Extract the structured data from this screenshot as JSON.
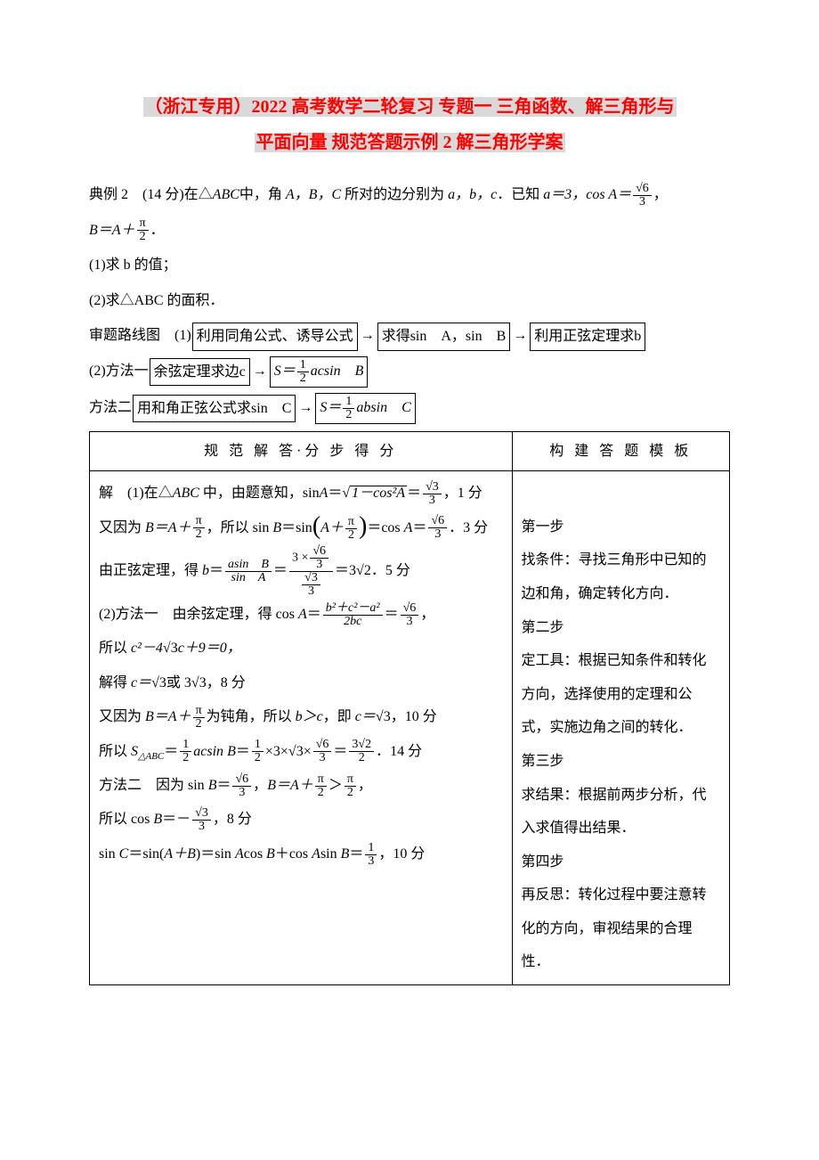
{
  "title_line1": "（浙江专用）2022 高考数学二轮复习 专题一 三角函数、解三角形与",
  "title_line2": "平面向量 规范答题示例 2 解三角形学案",
  "problem": {
    "prefix": "典例 2　(14 分)在△",
    "triangle": "ABC",
    "mid1": "中，角 ",
    "angles": "A，B，C",
    "mid2": " 所对的边分别为 ",
    "sides": "a，b，c",
    "mid3": "．已知 ",
    "a_eq": "a＝3，cos A＝",
    "cosA_num": "√6",
    "cosA_den": "3",
    "comma": "，",
    "B_eq_l": "B＝A＋",
    "pi_num": "π",
    "pi_den": "2",
    "end": "．"
  },
  "q1": "(1)求 b 的值；",
  "q2": "(2)求△ABC 的面积．",
  "route_label": "审题路线图",
  "route1_prefix": "(1)",
  "route1_box1": "利用同角公式、诱导公式",
  "route1_box2": "求得sin　A，sin　B",
  "route1_box3": "利用正弦定理求b",
  "route2_prefix": "(2)方法一",
  "route2_box1": "余弦定理求边c",
  "route2_box2_l": "S＝",
  "route2_box2_num": "1",
  "route2_box2_den": "2",
  "route2_box2_r": "acsin　B",
  "route3_prefix": "方法二",
  "route3_box1": "用和角正弦公式求sin　C",
  "route3_box2_l": "S＝",
  "route3_box2_num": "1",
  "route3_box2_den": "2",
  "route3_box2_r": "absin　C",
  "table": {
    "header_left": "规 范 解 答·分 步 得 分",
    "header_right": "构 建 答 题 模 板",
    "left": {
      "l1a": "解　(1)在△",
      "l1b": "ABC",
      "l1c": " 中，由题意知，sin",
      "l1d": "A",
      "l1e": "＝",
      "l1_root": "1－cos²A",
      "l1_eq": "＝",
      "l1_num": "√3",
      "l1_den": "3",
      "l1_score": "，1 分",
      "l2a": "又因为 ",
      "l2b": "B＝A＋",
      "l2_pi_num": "π",
      "l2_pi_den": "2",
      "l2c": "，所以 sin ",
      "l2d": "B",
      "l2e": "＝sin",
      "l2_paren_l": "A＋",
      "l2_pn": "π",
      "l2_pd": "2",
      "l2f": "＝cos ",
      "l2g": "A",
      "l2h": "＝",
      "l2_rn": "√6",
      "l2_rd": "3",
      "l2_score": "．3 分",
      "l3a": "由正弦定理，得 ",
      "l3b": "b",
      "l3c": "＝",
      "l3_f1n": "asin　B",
      "l3_f1d": "sin　A",
      "l3_eq1": "＝",
      "l3_f2n_top_l": "3 ×",
      "l3_f2n_top_n": "√6",
      "l3_f2n_top_d": "3",
      "l3_f2d_n": "√3",
      "l3_f2d_d": "3",
      "l3_eq2": "＝3",
      "l3_root2": "√2",
      "l3_score": "．5 分",
      "l4a": "(2)方法一　由余弦定理，得 cos ",
      "l4b": "A",
      "l4c": "＝",
      "l4_fn": "b²＋c²－a²",
      "l4_fd": "2bc",
      "l4d": "＝",
      "l4_rn": "√6",
      "l4_rd": "3",
      "l4e": "，",
      "l5a": "所以 ",
      "l5b": "c²－4",
      "l5_r3": "√3",
      "l5c": "c＋9＝0，",
      "l6a": "解得 ",
      "l6b": "c＝",
      "l6_r3a": "√3",
      "l6c": "或 3",
      "l6_r3b": "√3",
      "l6_score": "，8 分",
      "l7a": "又因为 ",
      "l7b": "B＝A＋",
      "l7_pn": "π",
      "l7_pd": "2",
      "l7c": "为钝角，所以 ",
      "l7d": "b＞c",
      "l7e": "，即 ",
      "l7f": "c＝",
      "l7_r3": "√3",
      "l7_score": "，10 分",
      "l8a": "所以 ",
      "l8b": "S",
      "l8_sub": "△ABC",
      "l8c": "＝",
      "l8_hn": "1",
      "l8_hd": "2",
      "l8d": "acsin ",
      "l8e": "B",
      "l8f": "＝",
      "l8_hn2": "1",
      "l8_hd2": "2",
      "l8g": "×3×",
      "l8_r3": "√3",
      "l8h": "×",
      "l8_rn": "√6",
      "l8_rd": "3",
      "l8i": "＝",
      "l8_fn": "3√2",
      "l8_fd": "2",
      "l8_score": "．14 分",
      "l9a": "方法二　因为 sin ",
      "l9b": "B",
      "l9c": "＝",
      "l9_rn": "√6",
      "l9_rd": "3",
      "l9d": "，",
      "l9e": "B＝A＋",
      "l9_pn": "π",
      "l9_pd": "2",
      "l9f": "＞",
      "l9_pn2": "π",
      "l9_pd2": "2",
      "l9g": "，",
      "l10a": "所以 cos ",
      "l10b": "B",
      "l10c": "＝－",
      "l10_rn": "√3",
      "l10_rd": "3",
      "l10_score": "，8 分",
      "l11a": "sin ",
      "l11b": "C",
      "l11c": "＝sin(",
      "l11d": "A＋B",
      "l11e": ")＝sin ",
      "l11f": "A",
      "l11g": "cos ",
      "l11h": "B",
      "l11i": "＋cos ",
      "l11j": "A",
      "l11k": "sin ",
      "l11l": "B",
      "l11m": "＝",
      "l11_fn": "1",
      "l11_fd": "3",
      "l11_score": "，10 分"
    },
    "right": {
      "s1t": "第一步",
      "s1b": "找条件：寻找三角形中已知的边和角，确定转化方向．",
      "s2t": "第二步",
      "s2b": "定工具：根据已知条件和转化方向，选择使用的定理和公式，实施边角之间的转化．",
      "s3t": "第三步",
      "s3b": "求结果：根据前两步分析，代入求值得出结果．",
      "s4t": "第四步",
      "s4b": "再反思：转化过程中要注意转化的方向，审视结果的合理性．"
    }
  }
}
